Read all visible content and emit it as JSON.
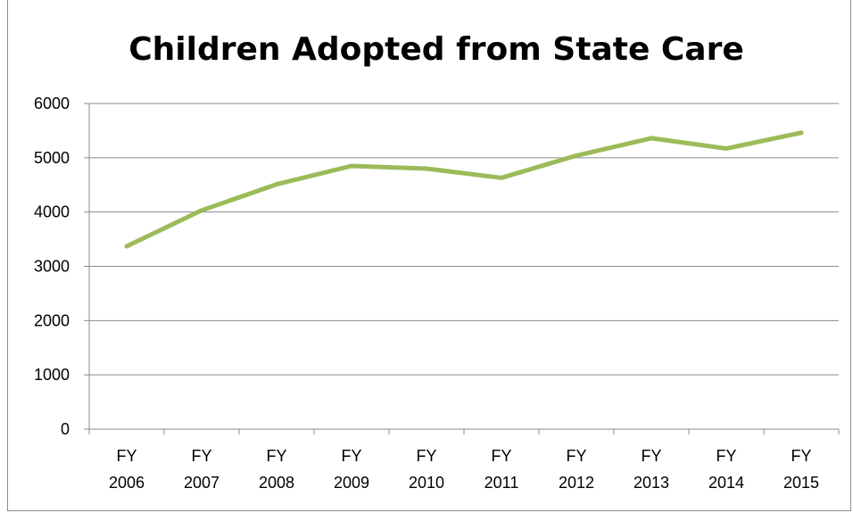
{
  "chart_data": {
    "type": "line",
    "title": "Children Adopted from State Care",
    "xlabel": "",
    "ylabel": "",
    "categories": [
      [
        "FY",
        "2006"
      ],
      [
        "FY",
        "2007"
      ],
      [
        "FY",
        "2008"
      ],
      [
        "FY",
        "2009"
      ],
      [
        "FY",
        "2010"
      ],
      [
        "FY",
        "2011"
      ],
      [
        "FY",
        "2012"
      ],
      [
        "FY",
        "2013"
      ],
      [
        "FY",
        "2014"
      ],
      [
        "FY",
        "2015"
      ]
    ],
    "series": [
      {
        "values": [
          3370,
          4030,
          4510,
          4850,
          4800,
          4630,
          5040,
          5360,
          5170,
          5460
        ],
        "color": "#9bbb59"
      }
    ],
    "ylim": [
      0,
      6000
    ],
    "yticks": [
      0,
      1000,
      2000,
      3000,
      4000,
      5000,
      6000
    ],
    "grid": true,
    "legend": "none"
  }
}
